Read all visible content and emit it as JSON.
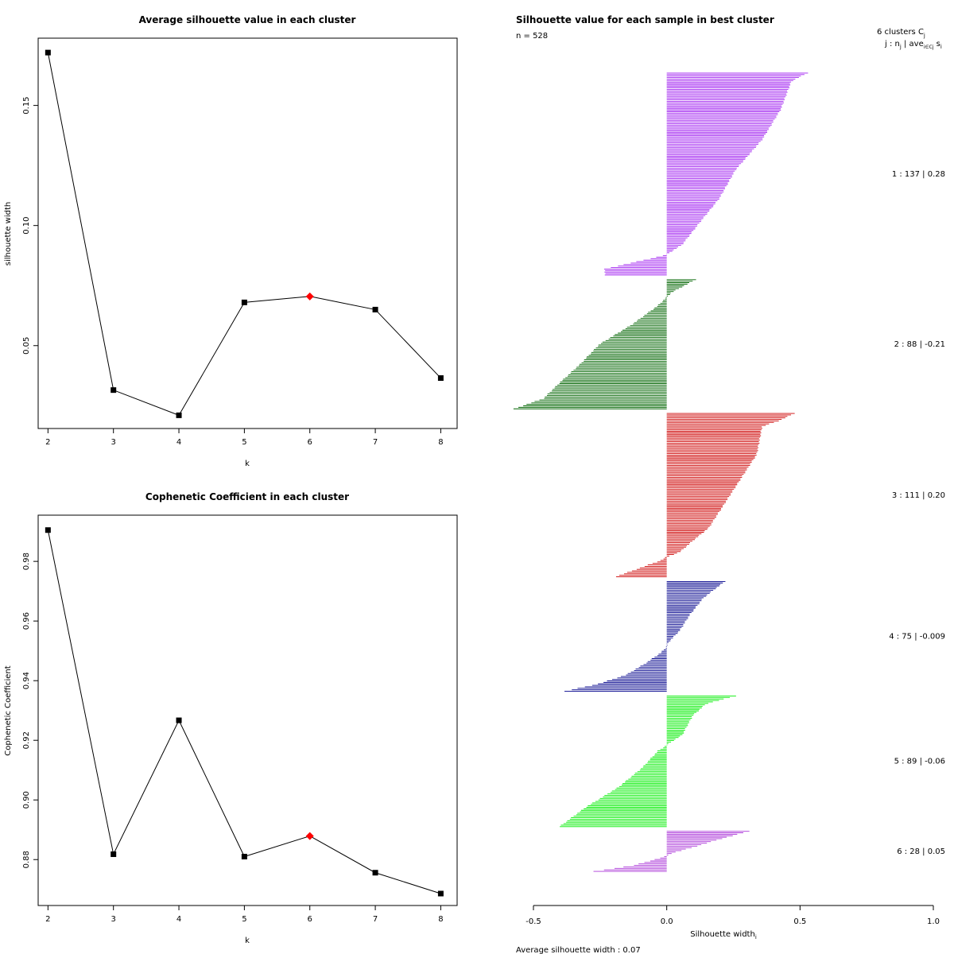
{
  "chart_data": [
    {
      "type": "line",
      "title": "Average silhouette value in each cluster",
      "xlabel": "k",
      "ylabel": "silhouette width",
      "x": [
        2,
        3,
        4,
        5,
        6,
        7,
        8
      ],
      "values": [
        0.172,
        0.0315,
        0.021,
        0.068,
        0.0705,
        0.065,
        0.0365
      ],
      "highlight_k": 6,
      "highlight_color": "#ff0000",
      "xticks": [
        2,
        3,
        4,
        5,
        6,
        7,
        8
      ],
      "yticks": [
        0.05,
        0.1,
        0.15
      ],
      "ytick_labels": [
        "0.05",
        "0.10",
        "0.15"
      ],
      "xlim": [
        1.85,
        8.25
      ],
      "ylim": [
        0.0155,
        0.178
      ]
    },
    {
      "type": "line",
      "title": "Cophenetic Coefficient in each cluster",
      "xlabel": "k",
      "ylabel": "Cophenetic Coefficient",
      "x": [
        2,
        3,
        4,
        5,
        6,
        7,
        8
      ],
      "values": [
        0.9905,
        0.8818,
        0.9267,
        0.881,
        0.8879,
        0.8756,
        0.8686
      ],
      "highlight_k": 6,
      "highlight_color": "#ff0000",
      "xticks": [
        2,
        3,
        4,
        5,
        6,
        7,
        8
      ],
      "yticks": [
        0.88,
        0.9,
        0.92,
        0.94,
        0.96,
        0.98
      ],
      "ytick_labels": [
        "0.88",
        "0.90",
        "0.92",
        "0.94",
        "0.96",
        "0.98"
      ],
      "xlim": [
        1.85,
        8.25
      ],
      "ylim": [
        0.8646,
        0.9955
      ]
    },
    {
      "type": "bar",
      "orientation": "horizontal",
      "title": "Silhouette value for each sample in best cluster",
      "n_label": "n = 528",
      "xlabel": "Silhouette width",
      "xlabel_sub": "i",
      "xticks": [
        -0.5,
        0.0,
        0.5,
        1.0
      ],
      "xtick_labels": [
        "-0.5",
        "0.0",
        "0.5",
        "1.0"
      ],
      "xlim": [
        -0.5,
        1.0
      ],
      "header_line1": "6  clusters  C",
      "header_sub1": "j",
      "header_line2": "j :  n",
      "header_sub2": "j",
      "header_line2b": " | ave",
      "header_sub3": "i∈Cj",
      "header_line2c": "  s",
      "header_sub4": "i",
      "footer": "Average silhouette width :  0.07",
      "clusters": [
        {
          "id": 1,
          "n": 137,
          "avg": "0.28",
          "label": "1 :   137  |  0.28",
          "color": "#a020f0",
          "max": 0.53,
          "min": -0.23,
          "breaks": [
            [
              0,
              0.53
            ],
            [
              0.04,
              0.47
            ],
            [
              0.18,
              0.43
            ],
            [
              0.33,
              0.36
            ],
            [
              0.48,
              0.26
            ],
            [
              0.62,
              0.2
            ],
            [
              0.75,
              0.12
            ],
            [
              0.85,
              0.06
            ],
            [
              0.9,
              0.0
            ],
            [
              0.91,
              -0.03
            ],
            [
              0.97,
              -0.23
            ]
          ]
        },
        {
          "id": 2,
          "n": 88,
          "avg": "-0.21",
          "label": "2 :   88  |  -0.21",
          "color": "#006400",
          "max": 0.11,
          "min": -0.57,
          "breaks": [
            [
              0,
              0.11
            ],
            [
              0.1,
              0.02
            ],
            [
              0.2,
              -0.03
            ],
            [
              0.35,
              -0.13
            ],
            [
              0.5,
              -0.25
            ],
            [
              0.65,
              -0.32
            ],
            [
              0.8,
              -0.4
            ],
            [
              0.92,
              -0.46
            ],
            [
              1.0,
              -0.57
            ]
          ]
        },
        {
          "id": 3,
          "n": 111,
          "avg": "0.20",
          "label": "3 :   111  |  0.20",
          "color": "#cd0000",
          "max": 0.48,
          "min": -0.19,
          "breaks": [
            [
              0,
              0.48
            ],
            [
              0.04,
              0.43
            ],
            [
              0.08,
              0.36
            ],
            [
              0.25,
              0.34
            ],
            [
              0.4,
              0.28
            ],
            [
              0.55,
              0.22
            ],
            [
              0.7,
              0.16
            ],
            [
              0.78,
              0.1
            ],
            [
              0.85,
              0.05
            ],
            [
              0.88,
              0.0
            ],
            [
              0.9,
              -0.02
            ],
            [
              1.0,
              -0.19
            ]
          ]
        },
        {
          "id": 4,
          "n": 75,
          "avg": "-0.009",
          "label": "4 :   75  |  -0.009",
          "color": "#00008b",
          "max": 0.22,
          "min": -0.38,
          "breaks": [
            [
              0,
              0.22
            ],
            [
              0.15,
              0.14
            ],
            [
              0.3,
              0.09
            ],
            [
              0.45,
              0.05
            ],
            [
              0.55,
              0.01
            ],
            [
              0.6,
              0.0
            ],
            [
              0.65,
              -0.02
            ],
            [
              0.75,
              -0.08
            ],
            [
              0.85,
              -0.15
            ],
            [
              0.93,
              -0.25
            ],
            [
              1.0,
              -0.38
            ]
          ]
        },
        {
          "id": 5,
          "n": 89,
          "avg": "-0.06",
          "label": "5 :   89  |  -0.06",
          "color": "#00ee00",
          "max": 0.26,
          "min": -0.4,
          "breaks": [
            [
              0,
              0.26
            ],
            [
              0.06,
              0.15
            ],
            [
              0.15,
              0.1
            ],
            [
              0.3,
              0.06
            ],
            [
              0.35,
              0.02
            ],
            [
              0.38,
              0.0
            ],
            [
              0.42,
              -0.03
            ],
            [
              0.55,
              -0.09
            ],
            [
              0.7,
              -0.18
            ],
            [
              0.85,
              -0.3
            ],
            [
              1.0,
              -0.4
            ]
          ]
        },
        {
          "id": 6,
          "n": 28,
          "avg": "0.05",
          "label": "6 :   28  |  0.05",
          "color": "#ab37d8",
          "max": 0.31,
          "min": -0.27,
          "breaks": [
            [
              0,
              0.31
            ],
            [
              0.2,
              0.2
            ],
            [
              0.4,
              0.1
            ],
            [
              0.55,
              0.02
            ],
            [
              0.62,
              0.0
            ],
            [
              0.7,
              -0.04
            ],
            [
              0.85,
              -0.12
            ],
            [
              1.0,
              -0.27
            ]
          ]
        }
      ]
    }
  ]
}
